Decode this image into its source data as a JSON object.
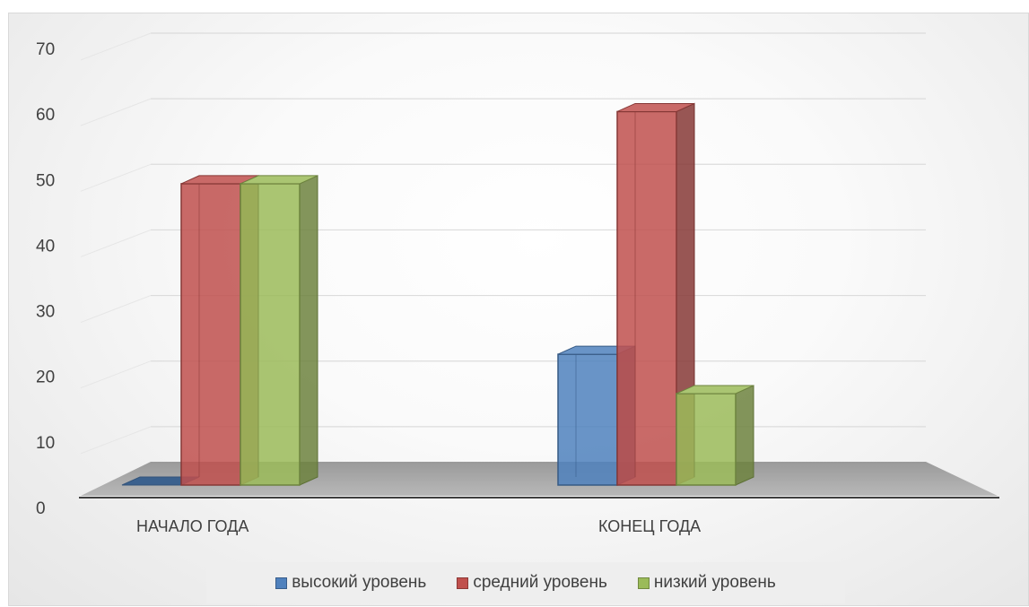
{
  "chart_data": {
    "type": "bar",
    "style": "3d-clustered-column",
    "categories": [
      "НАЧАЛО ГОДА",
      "КОНЕЦ ГОДА"
    ],
    "series": [
      {
        "name": "высокий уровень",
        "values": [
          0,
          22
        ],
        "color": "#4f81bd"
      },
      {
        "name": "средний уровень",
        "values": [
          48,
          59
        ],
        "color": "#c0504d"
      },
      {
        "name": "низкий уровень",
        "values": [
          48,
          16
        ],
        "color": "#9bbb59"
      }
    ],
    "y_ticks": [
      "0",
      "10",
      "20",
      "30",
      "40",
      "50",
      "60",
      "70"
    ],
    "ylim": [
      0,
      70
    ],
    "grid": true,
    "legend_position": "bottom"
  }
}
